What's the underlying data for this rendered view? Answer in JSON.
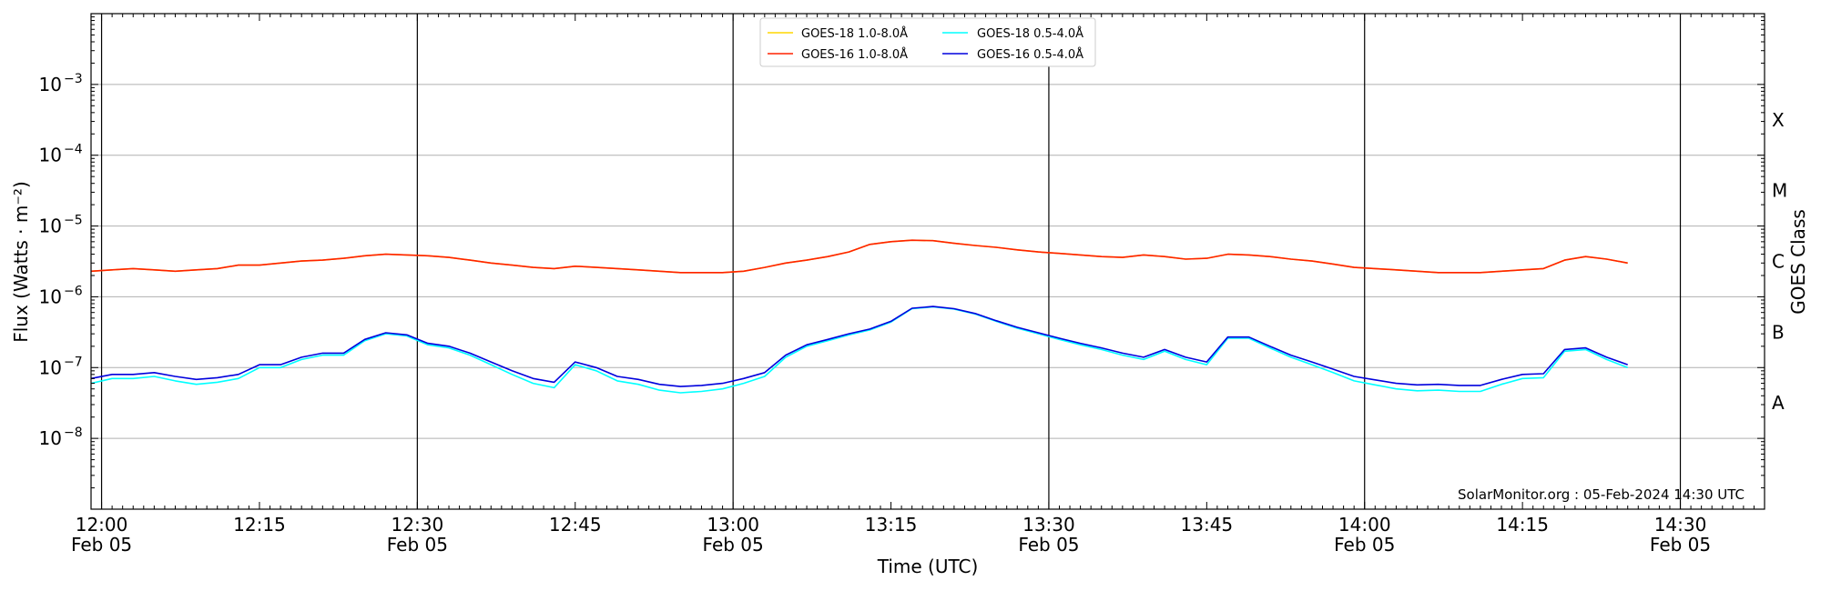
{
  "chart_data": {
    "type": "line",
    "xlabel": "Time (UTC)",
    "ylabel": "Flux (Watts · m⁻²)",
    "right_ylabel": "GOES Class",
    "yscale": "log",
    "ylim": [
      1e-09,
      0.01
    ],
    "xlim": [
      "11:59",
      "14:38"
    ],
    "x_ticks": [
      {
        "time": "12:00",
        "line1": "12:00",
        "line2": "Feb 05"
      },
      {
        "time": "12:15",
        "line1": "12:15",
        "line2": ""
      },
      {
        "time": "12:30",
        "line1": "12:30",
        "line2": "Feb 05"
      },
      {
        "time": "12:45",
        "line1": "12:45",
        "line2": ""
      },
      {
        "time": "13:00",
        "line1": "13:00",
        "line2": "Feb 05"
      },
      {
        "time": "13:15",
        "line1": "13:15",
        "line2": ""
      },
      {
        "time": "13:30",
        "line1": "13:30",
        "line2": "Feb 05"
      },
      {
        "time": "13:45",
        "line1": "13:45",
        "line2": ""
      },
      {
        "time": "14:00",
        "line1": "14:00",
        "line2": "Feb 05"
      },
      {
        "time": "14:15",
        "line1": "14:15",
        "line2": ""
      },
      {
        "time": "14:30",
        "line1": "14:30",
        "line2": "Feb 05"
      }
    ],
    "vertical_lines": [
      "12:00",
      "12:30",
      "13:00",
      "13:30",
      "14:00",
      "14:30"
    ],
    "y_ticks": [
      {
        "value": 1e-08,
        "mantissa": "10",
        "exponent": "−8"
      },
      {
        "value": 1e-07,
        "mantissa": "10",
        "exponent": "−7"
      },
      {
        "value": 1e-06,
        "mantissa": "10",
        "exponent": "−6"
      },
      {
        "value": 1e-05,
        "mantissa": "10",
        "exponent": "−5"
      },
      {
        "value": 0.0001,
        "mantissa": "10",
        "exponent": "−4"
      },
      {
        "value": 0.001,
        "mantissa": "10",
        "exponent": "−3"
      }
    ],
    "goes_classes": [
      {
        "label": "A",
        "value": 3.16e-08
      },
      {
        "label": "B",
        "value": 3.16e-07
      },
      {
        "label": "C",
        "value": 3.16e-06
      },
      {
        "label": "M",
        "value": 3.16e-05
      },
      {
        "label": "X",
        "value": 0.000316
      }
    ],
    "grid": true,
    "legend_position": "top-center",
    "credit": "SolarMonitor.org : 05-Feb-2024 14:30 UTC",
    "times": [
      "11:59",
      "12:01",
      "12:03",
      "12:05",
      "12:07",
      "12:09",
      "12:11",
      "12:13",
      "12:15",
      "12:17",
      "12:19",
      "12:21",
      "12:23",
      "12:25",
      "12:27",
      "12:29",
      "12:31",
      "12:33",
      "12:35",
      "12:37",
      "12:39",
      "12:41",
      "12:43",
      "12:45",
      "12:47",
      "12:49",
      "12:51",
      "12:53",
      "12:55",
      "12:57",
      "12:59",
      "13:01",
      "13:03",
      "13:05",
      "13:07",
      "13:09",
      "13:11",
      "13:13",
      "13:15",
      "13:17",
      "13:19",
      "13:21",
      "13:23",
      "13:25",
      "13:27",
      "13:29",
      "13:31",
      "13:33",
      "13:35",
      "13:37",
      "13:39",
      "13:41",
      "13:43",
      "13:45",
      "13:47",
      "13:49",
      "13:51",
      "13:53",
      "13:55",
      "13:57",
      "13:59",
      "14:01",
      "14:03",
      "14:05",
      "14:07",
      "14:09",
      "14:11",
      "14:13",
      "14:15",
      "14:17",
      "14:19",
      "14:21",
      "14:23",
      "14:25"
    ],
    "series": [
      {
        "name": "GOES-18 1.0-8.0Å",
        "color": "#ffd700",
        "values": [
          2.3e-06,
          2.4e-06,
          2.5e-06,
          2.4e-06,
          2.3e-06,
          2.4e-06,
          2.5e-06,
          2.8e-06,
          2.8e-06,
          3e-06,
          3.2e-06,
          3.3e-06,
          3.5e-06,
          3.8e-06,
          4e-06,
          3.9e-06,
          3.8e-06,
          3.6e-06,
          3.3e-06,
          3e-06,
          2.8e-06,
          2.6e-06,
          2.5e-06,
          2.7e-06,
          2.6e-06,
          2.5e-06,
          2.4e-06,
          2.3e-06,
          2.2e-06,
          2.2e-06,
          2.2e-06,
          2.3e-06,
          2.6e-06,
          3e-06,
          3.3e-06,
          3.7e-06,
          4.3e-06,
          5.5e-06,
          6e-06,
          6.3e-06,
          6.2e-06,
          5.7e-06,
          5.3e-06,
          5e-06,
          4.6e-06,
          4.3e-06,
          4.1e-06,
          3.9e-06,
          3.7e-06,
          3.6e-06,
          3.9e-06,
          3.7e-06,
          3.4e-06,
          3.5e-06,
          4e-06,
          3.9e-06,
          3.7e-06,
          3.4e-06,
          3.2e-06,
          2.9e-06,
          2.6e-06,
          2.5e-06,
          2.4e-06,
          2.3e-06,
          2.2e-06,
          2.2e-06,
          2.2e-06,
          2.3e-06,
          2.4e-06,
          2.5e-06,
          3.3e-06,
          3.7e-06,
          3.4e-06,
          3e-06
        ]
      },
      {
        "name": "GOES-16 1.0-8.0Å",
        "color": "#ff2200",
        "values": [
          2.3e-06,
          2.4e-06,
          2.5e-06,
          2.4e-06,
          2.3e-06,
          2.4e-06,
          2.5e-06,
          2.8e-06,
          2.8e-06,
          3e-06,
          3.2e-06,
          3.3e-06,
          3.5e-06,
          3.8e-06,
          4e-06,
          3.9e-06,
          3.8e-06,
          3.6e-06,
          3.3e-06,
          3e-06,
          2.8e-06,
          2.6e-06,
          2.5e-06,
          2.7e-06,
          2.6e-06,
          2.5e-06,
          2.4e-06,
          2.3e-06,
          2.2e-06,
          2.2e-06,
          2.2e-06,
          2.3e-06,
          2.6e-06,
          3e-06,
          3.3e-06,
          3.7e-06,
          4.3e-06,
          5.5e-06,
          6e-06,
          6.3e-06,
          6.2e-06,
          5.7e-06,
          5.3e-06,
          5e-06,
          4.6e-06,
          4.3e-06,
          4.1e-06,
          3.9e-06,
          3.7e-06,
          3.6e-06,
          3.9e-06,
          3.7e-06,
          3.4e-06,
          3.5e-06,
          4e-06,
          3.9e-06,
          3.7e-06,
          3.4e-06,
          3.2e-06,
          2.9e-06,
          2.6e-06,
          2.5e-06,
          2.4e-06,
          2.3e-06,
          2.2e-06,
          2.2e-06,
          2.2e-06,
          2.3e-06,
          2.4e-06,
          2.5e-06,
          3.3e-06,
          3.7e-06,
          3.4e-06,
          3e-06
        ]
      },
      {
        "name": "GOES-18 0.5-4.0Å",
        "color": "#00ffff",
        "values": [
          6e-08,
          7e-08,
          7e-08,
          7.5e-08,
          6.5e-08,
          5.8e-08,
          6.2e-08,
          7e-08,
          1e-07,
          1e-07,
          1.3e-07,
          1.5e-07,
          1.5e-07,
          2.4e-07,
          3e-07,
          2.8e-07,
          2.1e-07,
          1.9e-07,
          1.5e-07,
          1.1e-07,
          8e-08,
          6e-08,
          5.2e-08,
          1.1e-07,
          9e-08,
          6.5e-08,
          5.8e-08,
          4.8e-08,
          4.4e-08,
          4.6e-08,
          5e-08,
          6e-08,
          7.5e-08,
          1.4e-07,
          2e-07,
          2.4e-07,
          2.9e-07,
          3.4e-07,
          4.4e-07,
          6.8e-07,
          7.2e-07,
          6.7e-07,
          5.7e-07,
          4.5e-07,
          3.6e-07,
          3e-07,
          2.5e-07,
          2.1e-07,
          1.8e-07,
          1.5e-07,
          1.3e-07,
          1.7e-07,
          1.3e-07,
          1.1e-07,
          2.6e-07,
          2.6e-07,
          1.9e-07,
          1.4e-07,
          1.1e-07,
          8.5e-08,
          6.5e-08,
          5.7e-08,
          5e-08,
          4.7e-08,
          4.8e-08,
          4.6e-08,
          4.6e-08,
          5.8e-08,
          7e-08,
          7.2e-08,
          1.7e-07,
          1.8e-07,
          1.3e-07,
          1e-07
        ]
      },
      {
        "name": "GOES-16 0.5-4.0Å",
        "color": "#0000dd",
        "values": [
          7e-08,
          8e-08,
          8e-08,
          8.5e-08,
          7.5e-08,
          6.8e-08,
          7.2e-08,
          8e-08,
          1.1e-07,
          1.1e-07,
          1.4e-07,
          1.6e-07,
          1.6e-07,
          2.5e-07,
          3.1e-07,
          2.9e-07,
          2.2e-07,
          2e-07,
          1.6e-07,
          1.2e-07,
          9e-08,
          7e-08,
          6.2e-08,
          1.2e-07,
          1e-07,
          7.5e-08,
          6.8e-08,
          5.8e-08,
          5.4e-08,
          5.6e-08,
          6e-08,
          7e-08,
          8.5e-08,
          1.5e-07,
          2.1e-07,
          2.5e-07,
          3e-07,
          3.5e-07,
          4.5e-07,
          6.9e-07,
          7.3e-07,
          6.8e-07,
          5.8e-07,
          4.6e-07,
          3.7e-07,
          3.1e-07,
          2.6e-07,
          2.2e-07,
          1.9e-07,
          1.6e-07,
          1.4e-07,
          1.8e-07,
          1.4e-07,
          1.2e-07,
          2.7e-07,
          2.7e-07,
          2e-07,
          1.5e-07,
          1.2e-07,
          9.5e-08,
          7.5e-08,
          6.7e-08,
          6e-08,
          5.7e-08,
          5.8e-08,
          5.6e-08,
          5.6e-08,
          6.8e-08,
          8e-08,
          8.2e-08,
          1.8e-07,
          1.9e-07,
          1.4e-07,
          1.1e-07
        ]
      }
    ]
  }
}
